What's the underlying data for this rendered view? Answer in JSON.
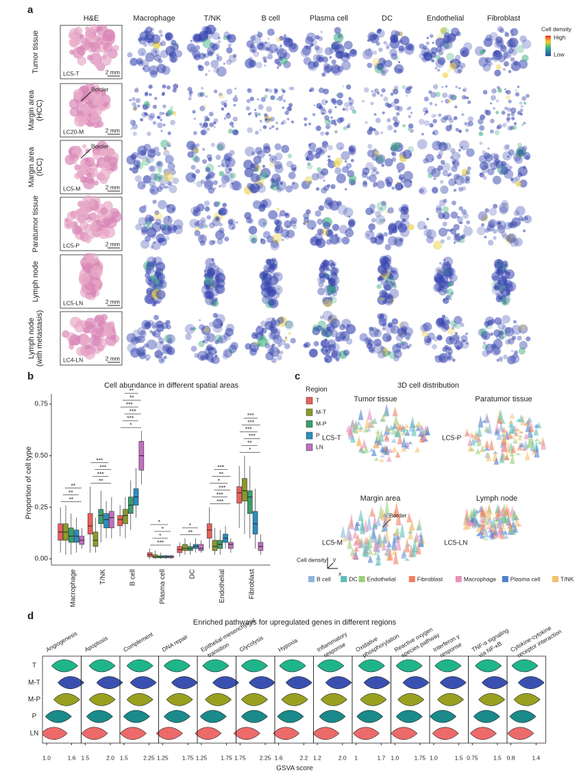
{
  "panel_a": {
    "letter": "a",
    "he_header": "H&E",
    "columns": [
      "Macrophage",
      "T/NK",
      "B cell",
      "Plasma cell",
      "DC",
      "Endothelial",
      "Fibroblast"
    ],
    "rows": [
      {
        "label": [
          "Tumor tissue"
        ],
        "sample": "LC5-T"
      },
      {
        "label": [
          "Margin area",
          "(HCC)"
        ],
        "sample": "LC20-M"
      },
      {
        "label": [
          "Margin area",
          "(ICC)"
        ],
        "sample": "LC5-M"
      },
      {
        "label": [
          "Paratumor tissue"
        ],
        "sample": "LC5-P"
      },
      {
        "label": [
          "Lymph node"
        ],
        "sample": "LC5-LN"
      },
      {
        "label": [
          "Lymph node",
          "(with metastasis)"
        ],
        "sample": "LC4-LN"
      }
    ],
    "scale": "2 mm",
    "border": "Border",
    "legend": {
      "title": "Cell density",
      "high": "High",
      "low": "Low"
    }
  },
  "panel_c": {
    "letter": "c",
    "title": "3D cell distribution",
    "panels": [
      {
        "title": "Tumor tissue",
        "sample": "LC5-T"
      },
      {
        "title": "Paratumor tissue",
        "sample": "LC5-P"
      },
      {
        "title": "Margin area",
        "sample": "LC5-M"
      },
      {
        "title": "Lymph node",
        "sample": "LC5-LN"
      }
    ],
    "border": "Border",
    "axis_title": "Cell density",
    "x": "x",
    "y": "y",
    "legend": [
      {
        "name": "B cell",
        "color": "#8fb4dd"
      },
      {
        "name": "DC",
        "color": "#5fbfb8"
      },
      {
        "name": "Endothelial",
        "color": "#9dcf7a"
      },
      {
        "name": "Fibroblast",
        "color": "#f08060"
      },
      {
        "name": "Macrophage",
        "color": "#e890b8"
      },
      {
        "name": "Plasma cell",
        "color": "#4f7fcf"
      },
      {
        "name": "T/NK",
        "color": "#f5c070"
      }
    ]
  },
  "chart_data": [
    {
      "type": "box",
      "letter": "b",
      "title": "Cell abundance in different spatial areas",
      "ylabel": "Proportion of cell type",
      "legend_title": "Region",
      "categories": [
        "Macrophage",
        "T/NK",
        "B cell",
        "Plasma cell",
        "DC",
        "Endothelial",
        "Fibroblast"
      ],
      "ylim": [
        -0.03,
        0.8
      ],
      "yticks": [
        {
          "value": 0,
          "label": "0.00"
        },
        0.25,
        {
          "value": 0.5,
          "label": "0.50"
        },
        0.75
      ],
      "series": [
        {
          "name": "T",
          "color": "#e8605a",
          "min": [
            0.03,
            0.03,
            0.11,
            0,
            0.01,
            0.05,
            0.15
          ],
          "q1": [
            0.09,
            0.12,
            0.16,
            0.01,
            0.03,
            0.1,
            0.27
          ],
          "median": [
            0.13,
            0.16,
            0.19,
            0.02,
            0.045,
            0.14,
            0.32
          ],
          "q3": [
            0.17,
            0.22,
            0.21,
            0.03,
            0.06,
            0.17,
            0.35
          ],
          "max": [
            0.25,
            0.35,
            0.26,
            0.05,
            0.08,
            0.25,
            0.45
          ]
        },
        {
          "name": "M-T",
          "color": "#8a9a2a",
          "min": [
            0.02,
            0.03,
            0.1,
            0,
            0.02,
            0.02,
            0.12
          ],
          "q1": [
            0.09,
            0.06,
            0.17,
            0.005,
            0.04,
            0.04,
            0.28
          ],
          "median": [
            0.13,
            0.09,
            0.21,
            0.01,
            0.05,
            0.06,
            0.33
          ],
          "q3": [
            0.17,
            0.13,
            0.24,
            0.02,
            0.07,
            0.09,
            0.39
          ],
          "max": [
            0.26,
            0.2,
            0.3,
            0.04,
            0.1,
            0.15,
            0.5
          ]
        },
        {
          "name": "M-P",
          "color": "#3a9e6a",
          "min": [
            0.02,
            0.08,
            0.14,
            0,
            0.02,
            0.02,
            0.1
          ],
          "q1": [
            0.08,
            0.17,
            0.22,
            0.005,
            0.04,
            0.05,
            0.22
          ],
          "median": [
            0.11,
            0.21,
            0.26,
            0.01,
            0.05,
            0.07,
            0.3
          ],
          "q3": [
            0.15,
            0.24,
            0.3,
            0.015,
            0.06,
            0.09,
            0.33
          ],
          "max": [
            0.22,
            0.33,
            0.38,
            0.03,
            0.08,
            0.14,
            0.45
          ]
        },
        {
          "name": "P",
          "color": "#2b8cbf",
          "min": [
            0.03,
            0.1,
            0.2,
            0,
            0.03,
            0.05,
            0.05
          ],
          "q1": [
            0.08,
            0.15,
            0.26,
            0.005,
            0.05,
            0.08,
            0.12
          ],
          "median": [
            0.11,
            0.19,
            0.3,
            0.01,
            0.06,
            0.1,
            0.17
          ],
          "q3": [
            0.14,
            0.22,
            0.34,
            0.015,
            0.07,
            0.12,
            0.23
          ],
          "max": [
            0.2,
            0.28,
            0.44,
            0.02,
            0.1,
            0.16,
            0.34
          ]
        },
        {
          "name": "LN",
          "color": "#c070c0",
          "min": [
            0.05,
            0.1,
            0.36,
            0,
            0.03,
            0.03,
            0.02
          ],
          "q1": [
            0.07,
            0.15,
            0.43,
            0.005,
            0.04,
            0.05,
            0.04
          ],
          "median": [
            0.09,
            0.2,
            0.5,
            0.01,
            0.05,
            0.07,
            0.06
          ],
          "q3": [
            0.11,
            0.23,
            0.57,
            0.015,
            0.07,
            0.08,
            0.08
          ],
          "max": [
            0.15,
            0.3,
            0.62,
            0.02,
            0.09,
            0.1,
            0.12
          ]
        }
      ],
      "annotations": [
        [
          "**",
          "**",
          "**"
        ],
        [
          "**",
          "***",
          "***",
          "***"
        ],
        [
          "*",
          "***",
          "***",
          "***",
          "**",
          "**"
        ],
        [
          "***",
          "*",
          "*",
          "*"
        ],
        [
          "**",
          "*"
        ],
        [
          "***",
          "***",
          "***",
          "*",
          "**",
          "***"
        ],
        [
          "*",
          "**",
          "***",
          "***",
          "***",
          "***"
        ]
      ]
    },
    {
      "type": "violin",
      "letter": "d",
      "title": "Enriched pathways for upregulated genes in different regions",
      "xlabel": "GSVA score",
      "categories": [
        "T",
        "M-T",
        "M-P",
        "P",
        "LN"
      ],
      "colors": [
        "#1fb58a",
        "#3a50b0",
        "#99a020",
        "#1a8a8a",
        "#ec6a6a"
      ],
      "panels": [
        {
          "title": [
            "Angiogenesis"
          ],
          "xlim": [
            0.9,
            1.83
          ],
          "xticks": [
            {
              "value": 1,
              "label": "1.0"
            },
            1.6
          ],
          "values": [
            1.45,
            1.6,
            1.5,
            1.3,
            1.2
          ]
        },
        {
          "title": [
            "Apoptosis"
          ],
          "xlim": [
            1.42,
            2.19
          ],
          "xticks": [
            1.5,
            {
              "value": 2,
              "label": "2.0"
            }
          ],
          "values": [
            1.85,
            2.0,
            1.85,
            1.8,
            1.7
          ]
        },
        {
          "title": [
            "Complement"
          ],
          "xlim": [
            1.38,
            2.54
          ],
          "xticks": [
            1.5,
            2.25
          ],
          "values": [
            2.0,
            2.1,
            2.0,
            1.9,
            1.8
          ]
        },
        {
          "title": [
            "DNA repair"
          ],
          "xlim": [
            1.17,
            1.94
          ],
          "xticks": [
            1.25,
            1.75
          ],
          "values": [
            1.55,
            1.7,
            1.6,
            1.55,
            1.4
          ]
        },
        {
          "title": [
            "Epithelial-mesenchymal",
            "transition"
          ],
          "xlim": [
            1.17,
            1.94
          ],
          "xticks": [
            1.25,
            1.75
          ],
          "values": [
            1.55,
            1.75,
            1.6,
            1.5,
            1.4
          ]
        },
        {
          "title": [
            "Glycolysis"
          ],
          "xlim": [
            1.67,
            2.44
          ],
          "xticks": [
            1.75,
            2.25
          ],
          "values": [
            2.05,
            2.2,
            2.05,
            2.05,
            1.9
          ]
        },
        {
          "title": [
            "Hypoxia"
          ],
          "xlim": [
            1.51,
            2.43
          ],
          "xticks": [
            1.6,
            2.2
          ],
          "values": [
            1.95,
            2.1,
            2.0,
            1.9,
            1.8
          ]
        },
        {
          "title": [
            "Inflammatory",
            "response"
          ],
          "xlim": [
            1.08,
            2.31
          ],
          "xticks": [
            1.2,
            {
              "value": 2,
              "label": "2.0"
            }
          ],
          "values": [
            1.65,
            1.9,
            1.75,
            1.7,
            1.5
          ]
        },
        {
          "title": [
            "Oxidative",
            "phosphorylation"
          ],
          "xlim": [
            0.89,
            1.97
          ],
          "xticks": [
            1,
            1.7
          ],
          "values": [
            1.45,
            1.6,
            1.5,
            1.4,
            1.3
          ]
        },
        {
          "title": [
            "Reactive oxygen",
            "species pathway"
          ],
          "xlim": [
            0.88,
            2.04
          ],
          "xticks": [
            {
              "value": 1,
              "label": "1.0"
            },
            1.75
          ],
          "values": [
            1.45,
            1.65,
            1.5,
            1.45,
            1.3
          ]
        },
        {
          "title": [
            "Interferon γ",
            "response"
          ],
          "xlim": [
            0.92,
            1.69
          ],
          "xticks": [
            {
              "value": 1,
              "label": "1.0"
            },
            1.5
          ],
          "values": [
            1.3,
            1.4,
            1.35,
            1.2,
            1.25
          ]
        },
        {
          "title": [
            "TNF-α signaling",
            "via NF-κB"
          ],
          "xlim": [
            0.63,
            1.79
          ],
          "xticks": [
            0.75,
            1.5
          ],
          "values": [
            1.25,
            1.45,
            1.35,
            1.2,
            1.1
          ]
        },
        {
          "title": [
            "Cytokine-cytokine",
            "receptor interaction"
          ],
          "xlim": [
            0.71,
            1.63
          ],
          "xticks": [
            0.8,
            1.4
          ],
          "values": [
            1.15,
            1.3,
            1.2,
            1.1,
            1.05
          ]
        }
      ]
    }
  ]
}
